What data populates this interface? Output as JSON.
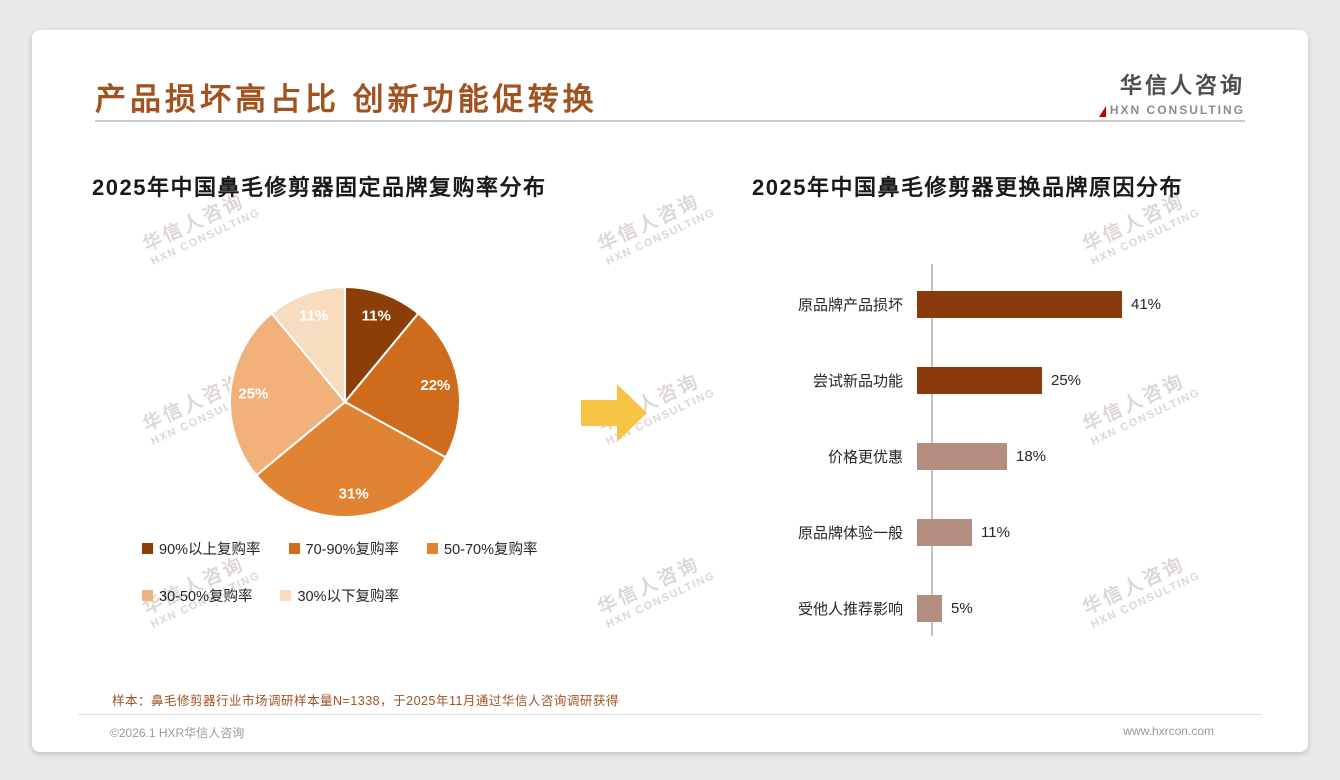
{
  "page": {
    "title": "产品损坏高占比 创新功能促转换",
    "sample_note": "样本：鼻毛修剪器行业市场调研样本量N=1338，于2025年11月通过华信人咨询调研获得",
    "footer": {
      "left": "©2026.1 HXR华信人咨询",
      "right": "www.hxrcon.com"
    }
  },
  "logo": {
    "cn": "华信人咨询",
    "en": "HXN CONSULTING"
  },
  "watermark": {
    "cn": "华信人咨询",
    "en": "HXN CONSULTING"
  },
  "colors": {
    "accent": "#A2521F",
    "arrow": "#F8C445",
    "axis": "#BFBFBF"
  },
  "chart_data": [
    {
      "type": "pie",
      "title": "2025年中国鼻毛修剪器固定品牌复购率分布",
      "labels": [
        "90%以上复购率",
        "70-90%复购率",
        "50-70%复购率",
        "30-50%复购率",
        "30%以下复购率"
      ],
      "values": [
        11,
        22,
        31,
        25,
        11
      ],
      "unit": "%",
      "colors": [
        "#8B3E08",
        "#CE6B1D",
        "#E08433",
        "#F2B07A",
        "#F8DCC0"
      ],
      "start_angle": "top",
      "direction": "clockwise",
      "legend_position": "bottom",
      "legend_rows": [
        [
          0,
          1,
          2
        ],
        [
          3,
          4
        ]
      ]
    },
    {
      "type": "bar",
      "title": "2025年中国鼻毛修剪器更换品牌原因分布",
      "orientation": "horizontal",
      "categories": [
        "原品牌产品损坏",
        "尝试新品功能",
        "价格更优惠",
        "原品牌体验一般",
        "受他人推荐影响"
      ],
      "values": [
        41,
        25,
        18,
        11,
        5
      ],
      "unit": "%",
      "colors": [
        "#8B3A0B",
        "#8B3A0B",
        "#B28D80",
        "#B28D80",
        "#B28D80"
      ],
      "xlim": [
        0,
        45
      ]
    }
  ]
}
